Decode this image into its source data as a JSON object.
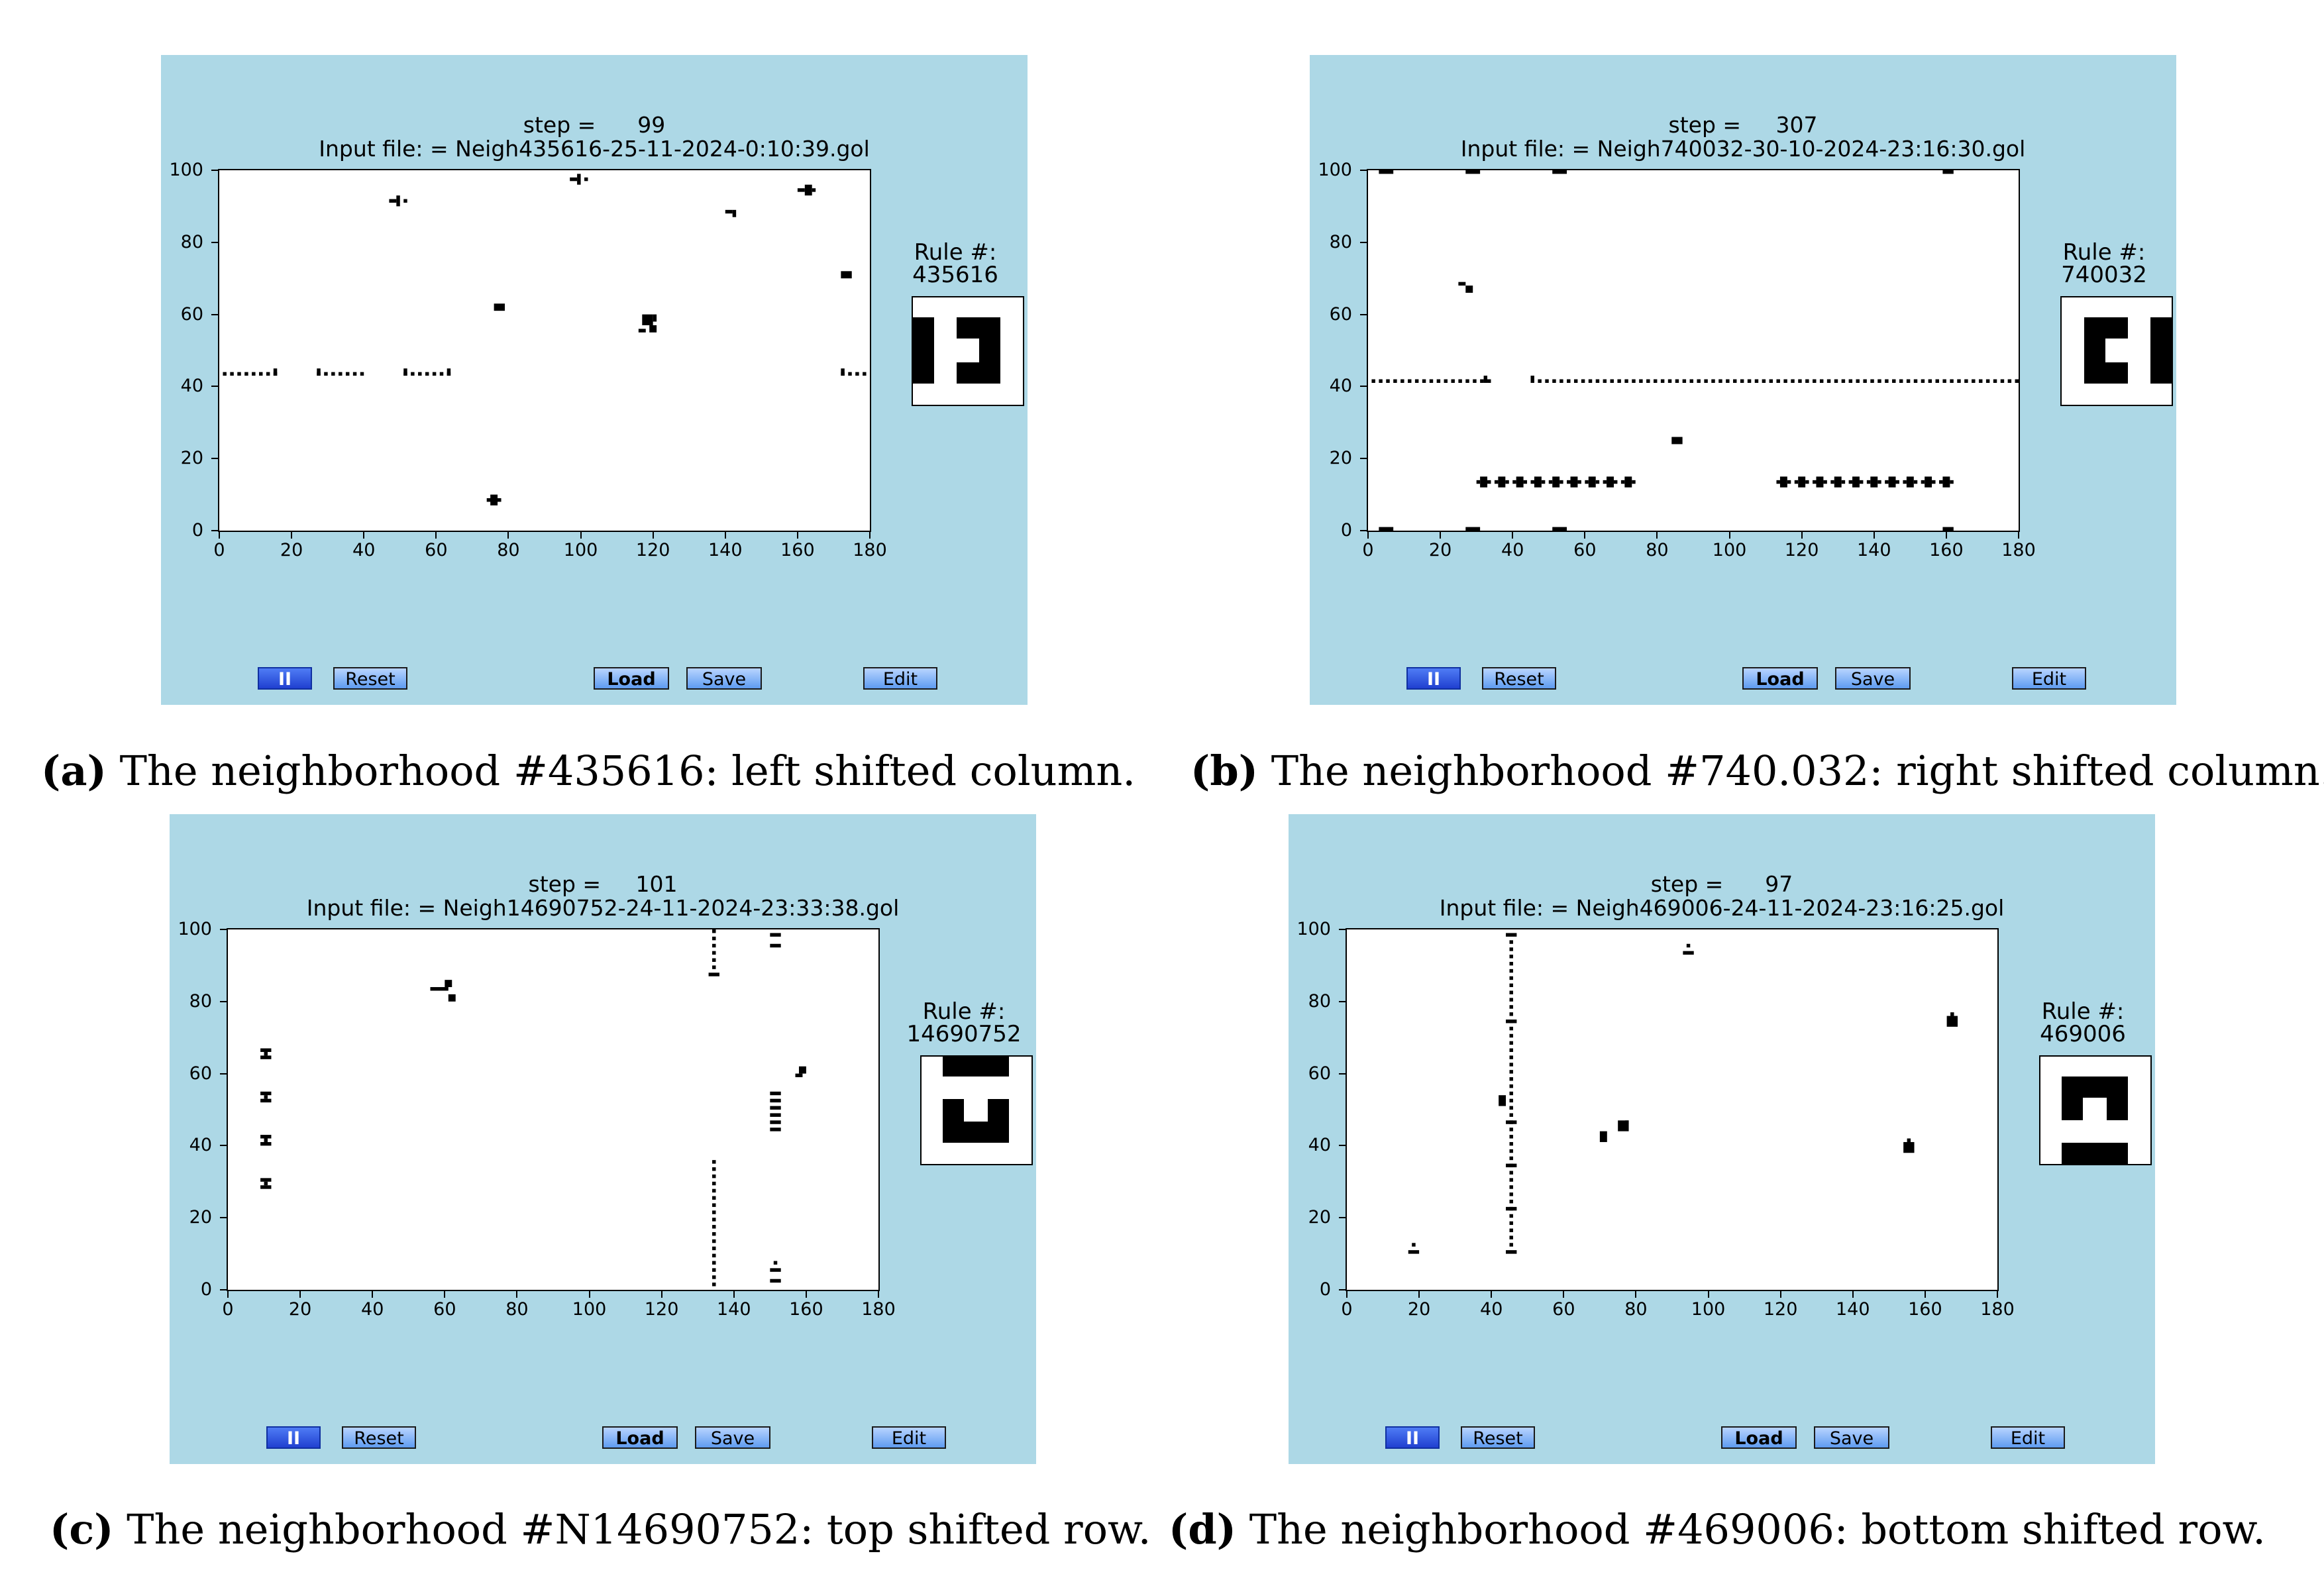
{
  "panels": [
    {
      "id": "a",
      "step_label": "step =      99",
      "input_file": "Input file: = Neigh435616-25-11-2024-0:10:39.gol",
      "rule_title": "Rule #:",
      "rule_number": "435616",
      "caption_tag": "(a)",
      "caption_text": "The neighborhood #435616: left shifted column.",
      "buttons": {
        "pause": "II",
        "reset": "Reset",
        "load": "Load",
        "save": "Save",
        "edit": "Edit"
      }
    },
    {
      "id": "b",
      "step_label": "step =     307",
      "input_file": "Input file: = Neigh740032-30-10-2024-23:16:30.gol",
      "rule_title": "Rule #:",
      "rule_number": "740032",
      "caption_tag": "(b)",
      "caption_text": "The neighborhood #740.032: right shifted column.",
      "buttons": {
        "pause": "II",
        "reset": "Reset",
        "load": "Load",
        "save": "Save",
        "edit": "Edit"
      }
    },
    {
      "id": "c",
      "step_label": "step =     101",
      "input_file": "Input file: = Neigh14690752-24-11-2024-23:33:38.gol",
      "rule_title": "Rule #:",
      "rule_number": "14690752",
      "caption_tag": "(c)",
      "caption_text": "The neighborhood #N14690752: top shifted row.",
      "buttons": {
        "pause": "II",
        "reset": "Reset",
        "load": "Load",
        "save": "Save",
        "edit": "Edit"
      }
    },
    {
      "id": "d",
      "step_label": "step =      97",
      "input_file": "Input file: = Neigh469006-24-11-2024-23:16:25.gol",
      "rule_title": "Rule #:",
      "rule_number": "469006",
      "caption_tag": "(d)",
      "caption_text": "The neighborhood #469006: bottom shifted row.",
      "buttons": {
        "pause": "II",
        "reset": "Reset",
        "load": "Load",
        "save": "Save",
        "edit": "Edit"
      }
    }
  ],
  "axes": {
    "xticks": [
      "0",
      "20",
      "40",
      "60",
      "80",
      "100",
      "120",
      "140",
      "160",
      "180"
    ],
    "yticks": [
      "0",
      "20",
      "40",
      "60",
      "80",
      "100"
    ]
  },
  "colors": {
    "panel_bg": "#add8e6",
    "cell": "#000000",
    "grid_bg": "#ffffff",
    "button": "#5e9cf0",
    "pause_button": "#2040d0"
  }
}
